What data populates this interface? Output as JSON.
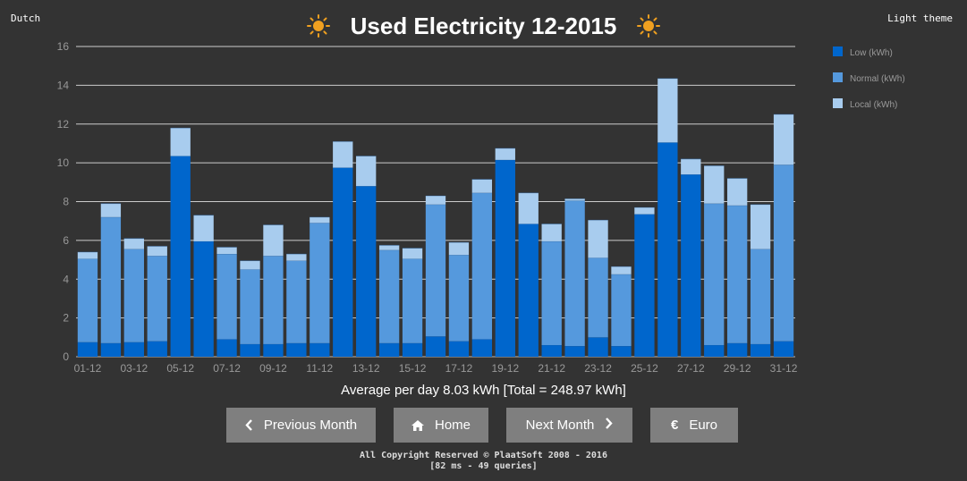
{
  "nav": {
    "language": "Dutch",
    "theme": "Light theme"
  },
  "header": {
    "title": "Used Electricity 12-2015",
    "icon": "sun-icon"
  },
  "summary": "Average per day 8.03 kWh [Total = 248.97 kWh]",
  "buttons": {
    "previous": "Previous Month",
    "home": "Home",
    "next": "Next Month",
    "euro": "Euro",
    "euro_symbol": "€"
  },
  "footer": {
    "copyright": "All Copyright Reserved © PlaatSoft 2008 - 2016",
    "stats": "[82 ms - 49 queries]"
  },
  "colors": {
    "background": "#333333",
    "low": "#0066cc",
    "normal": "#5599dd",
    "local": "#a8ccee",
    "sun": "#f0a020"
  },
  "chart_data": {
    "type": "bar",
    "stacked": true,
    "ylim": [
      0,
      16
    ],
    "yticks": [
      0,
      2,
      4,
      6,
      8,
      10,
      12,
      14,
      16
    ],
    "categories": [
      "01-12",
      "02-12",
      "03-12",
      "04-12",
      "05-12",
      "06-12",
      "07-12",
      "08-12",
      "09-12",
      "10-12",
      "11-12",
      "12-12",
      "13-12",
      "14-12",
      "15-12",
      "16-12",
      "17-12",
      "18-12",
      "19-12",
      "20-12",
      "21-12",
      "22-12",
      "23-12",
      "24-12",
      "25-12",
      "26-12",
      "27-12",
      "28-12",
      "29-12",
      "30-12",
      "31-12"
    ],
    "xtick_labels": [
      "01-12",
      "",
      "03-12",
      "",
      "05-12",
      "",
      "07-12",
      "",
      "09-12",
      "",
      "11-12",
      "",
      "13-12",
      "",
      "15-12",
      "",
      "17-12",
      "",
      "19-12",
      "",
      "21-12",
      "",
      "23-12",
      "",
      "25-12",
      "",
      "27-12",
      "",
      "29-12",
      "",
      "31-12"
    ],
    "legend_position": "right",
    "grid": true,
    "series": [
      {
        "name": "Low (kWh)",
        "color": "#0066cc",
        "values": [
          0.75,
          0.7,
          0.75,
          0.8,
          10.35,
          5.95,
          0.9,
          0.65,
          0.65,
          0.7,
          0.7,
          9.75,
          8.8,
          0.7,
          0.7,
          1.05,
          0.8,
          0.9,
          10.15,
          6.85,
          0.6,
          0.55,
          1.0,
          0.55,
          7.35,
          11.05,
          9.4,
          0.6,
          0.7,
          0.65,
          0.8
        ]
      },
      {
        "name": "Normal (kWh)",
        "color": "#5599dd",
        "values": [
          4.3,
          6.5,
          4.8,
          4.4,
          0,
          0,
          4.4,
          3.85,
          4.55,
          4.25,
          6.2,
          0,
          0,
          4.8,
          4.35,
          6.8,
          4.45,
          7.55,
          0,
          0,
          5.35,
          7.5,
          4.1,
          3.7,
          0,
          0,
          0,
          7.3,
          7.1,
          4.9,
          9.1
        ]
      },
      {
        "name": "Local (kWh)",
        "color": "#a8ccee",
        "values": [
          0.35,
          0.7,
          0.55,
          0.5,
          1.45,
          1.35,
          0.35,
          0.45,
          1.6,
          0.35,
          0.3,
          1.35,
          1.55,
          0.25,
          0.55,
          0.45,
          0.65,
          0.7,
          0.6,
          1.6,
          0.9,
          0.1,
          1.95,
          0.4,
          0.35,
          3.3,
          0.8,
          1.95,
          1.4,
          2.3,
          2.6
        ]
      }
    ]
  }
}
